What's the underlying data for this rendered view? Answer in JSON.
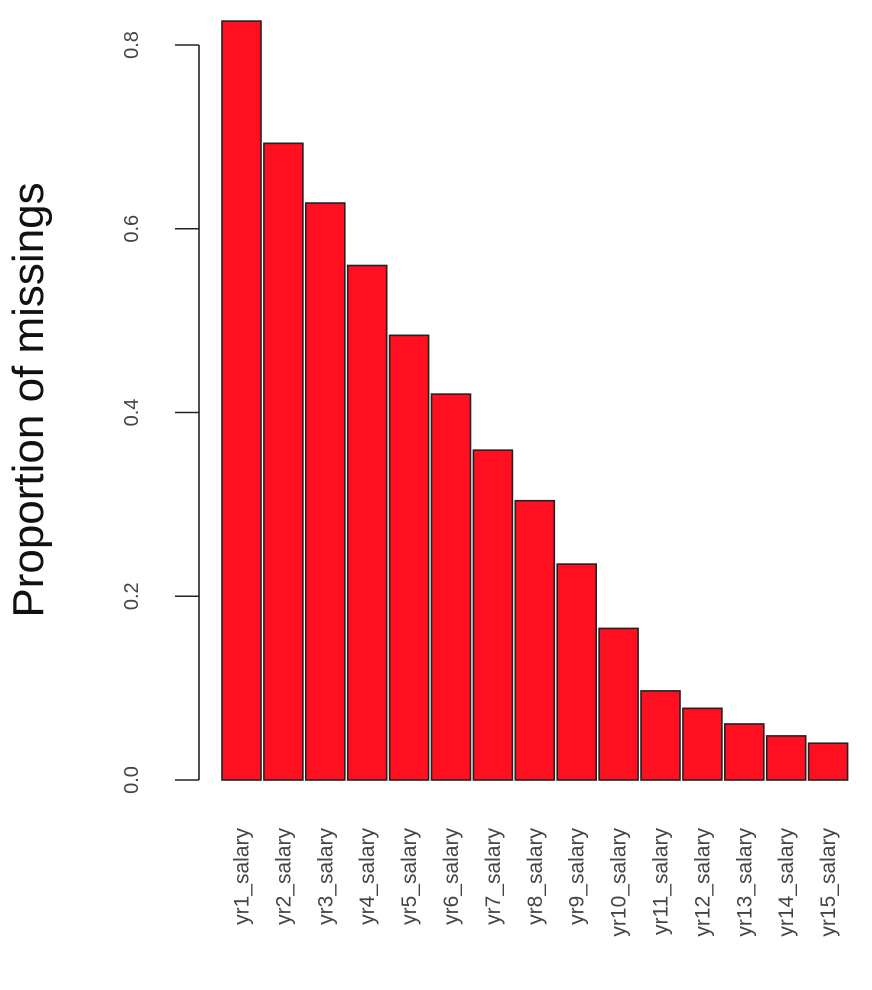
{
  "chart_data": {
    "type": "bar",
    "title": "",
    "xlabel": "",
    "ylabel": "Proportion of missings",
    "categories": [
      "yr1_salary",
      "yr2_salary",
      "yr3_salary",
      "yr4_salary",
      "yr5_salary",
      "yr6_salary",
      "yr7_salary",
      "yr8_salary",
      "yr9_salary",
      "yr10_salary",
      "yr11_salary",
      "yr12_salary",
      "yr13_salary",
      "yr14_salary",
      "yr15_salary"
    ],
    "values": [
      0.826,
      0.693,
      0.628,
      0.56,
      0.484,
      0.42,
      0.359,
      0.304,
      0.235,
      0.165,
      0.097,
      0.078,
      0.061,
      0.048,
      0.04
    ],
    "ylim": [
      0,
      0.8
    ],
    "yticks": [
      0.0,
      0.2,
      0.4,
      0.6,
      0.8
    ],
    "ytick_labels": [
      "0.0",
      "0.2",
      "0.4",
      "0.6",
      "0.8"
    ],
    "bar_color": "#ff0f1f",
    "bar_border_color": "#222222",
    "grid": false,
    "legend": "none"
  }
}
